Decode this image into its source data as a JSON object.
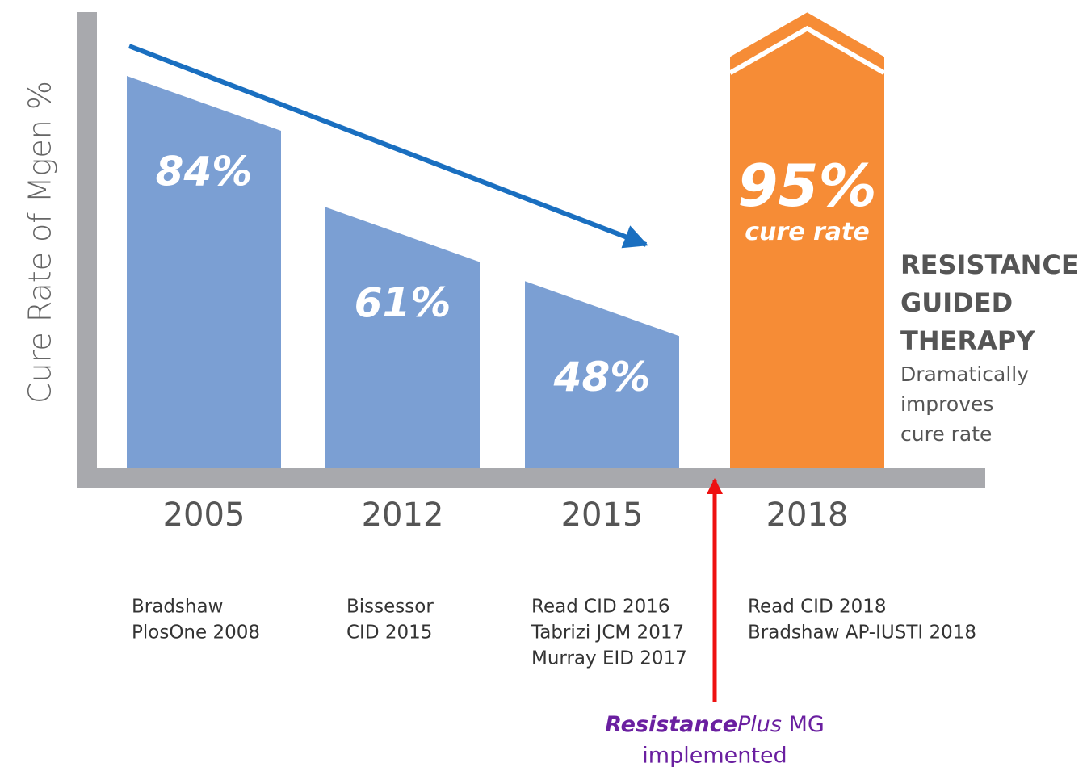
{
  "chart_data": {
    "type": "bar",
    "ylabel": "Cure Rate of Mgen %",
    "categories": [
      "2005",
      "2012",
      "2015",
      "2018"
    ],
    "values": [
      84,
      61,
      48,
      95
    ],
    "value_labels": [
      "84%",
      "61%",
      "48%",
      "95%"
    ],
    "colors": [
      "#7b9fd3",
      "#7b9fd3",
      "#7b9fd3",
      "#f68c36"
    ],
    "ylim": [
      20,
      100
    ],
    "highlight_subtitle": "cure rate",
    "references": [
      [
        "Bradshaw",
        "PlosOne 2008"
      ],
      [
        "Bissessor",
        "CID 2015"
      ],
      [
        "Read CID 2016",
        "Tabrizi JCM 2017",
        "Murray  EID 2017"
      ],
      [
        "Read CID 2018",
        "Bradshaw AP-IUSTI 2018"
      ]
    ],
    "annotation": {
      "heading": [
        "RESISTANCE",
        "GUIDED",
        "THERAPY"
      ],
      "text": [
        "Dramatically",
        "improves",
        "cure rate"
      ]
    },
    "marker": {
      "brand_bold": "Resistance",
      "brand_italic": "Plus",
      "brand_rest": " MG",
      "line2": "implemented"
    }
  }
}
